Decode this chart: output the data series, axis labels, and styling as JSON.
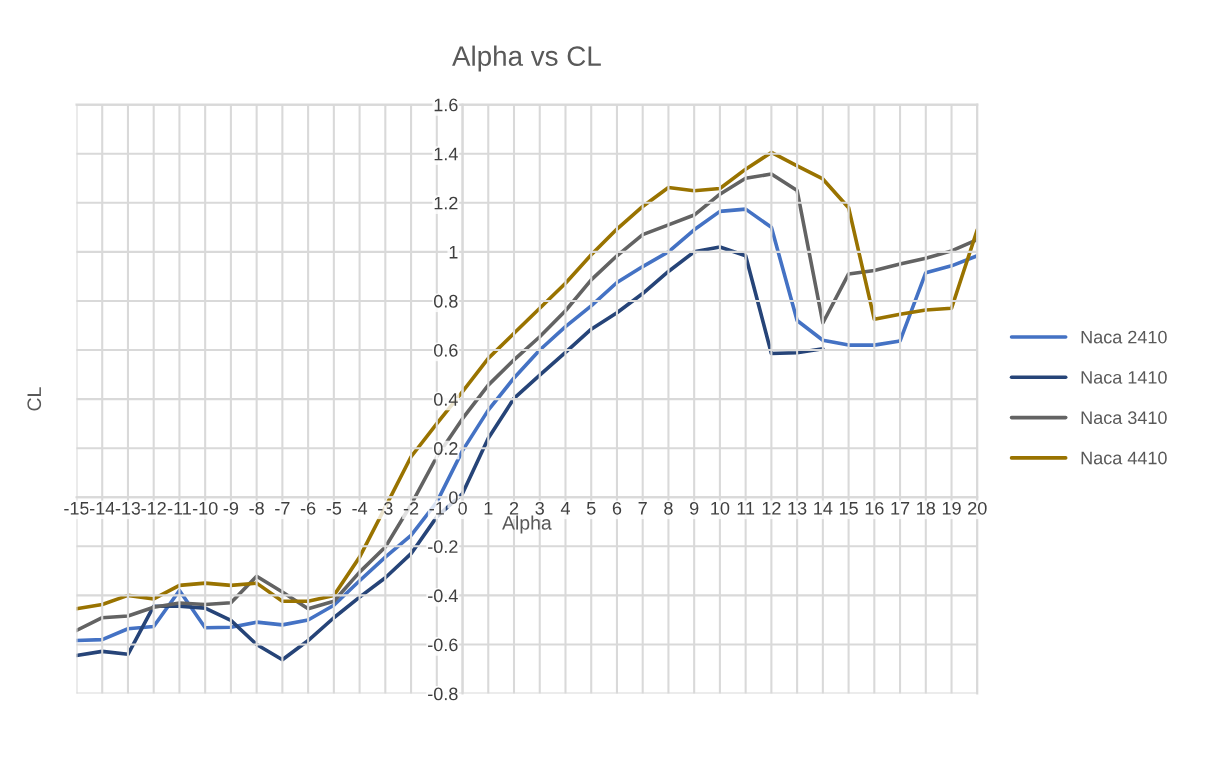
{
  "chart_data": {
    "type": "line",
    "title": "Alpha vs CL",
    "xlabel": "Alpha",
    "ylabel": "CL",
    "categories": [
      "-15",
      "-14",
      "-13",
      "-12",
      "-11",
      "-10",
      "-9",
      "-8",
      "-7",
      "-6",
      "-5",
      "-4",
      "-3",
      "-2",
      "-1",
      "0",
      "1",
      "2",
      "3",
      "4",
      "5",
      "6",
      "7",
      "8",
      "9",
      "10",
      "11",
      "12",
      "13",
      "14",
      "15",
      "16",
      "17",
      "18",
      "19",
      "20"
    ],
    "series": [
      {
        "name": "Naca 2410",
        "color": "#4472c4",
        "values": [
          -0.584,
          -0.58,
          -0.536,
          -0.527,
          -0.38,
          -0.532,
          -0.53,
          -0.509,
          -0.52,
          -0.5,
          -0.44,
          -0.34,
          -0.244,
          -0.155,
          -0.02,
          0.19,
          0.355,
          0.486,
          0.6,
          0.695,
          0.78,
          0.875,
          0.94,
          1.0,
          1.09,
          1.165,
          1.174,
          1.1,
          0.72,
          0.64,
          0.62,
          0.62,
          0.637,
          0.915,
          0.943,
          0.984
        ]
      },
      {
        "name": "Naca 1410",
        "color": "#264478",
        "values": [
          -0.645,
          -0.628,
          -0.64,
          -0.444,
          -0.444,
          -0.452,
          -0.502,
          -0.6,
          -0.662,
          -0.584,
          -0.491,
          -0.407,
          -0.328,
          -0.23,
          -0.08,
          0.015,
          0.24,
          0.403,
          0.498,
          0.59,
          0.685,
          0.752,
          0.83,
          0.92,
          1.0,
          1.02,
          0.984,
          0.586,
          0.589,
          0.605,
          null,
          null,
          null,
          null,
          null,
          null
        ]
      },
      {
        "name": "Naca 3410",
        "color": "#636363",
        "values": [
          -0.543,
          -0.491,
          -0.484,
          -0.448,
          -0.431,
          -0.437,
          -0.43,
          -0.322,
          -0.386,
          -0.454,
          -0.424,
          -0.305,
          -0.203,
          -0.03,
          0.165,
          0.32,
          0.457,
          0.56,
          0.654,
          0.76,
          0.886,
          0.984,
          1.07,
          1.11,
          1.15,
          1.235,
          1.3,
          1.317,
          1.25,
          0.71,
          0.91,
          0.924,
          0.95,
          0.974,
          1.004,
          1.05
        ]
      },
      {
        "name": "Naca 4410",
        "color": "#997300",
        "values": [
          -0.454,
          -0.437,
          -0.4,
          -0.414,
          -0.359,
          -0.35,
          -0.359,
          -0.35,
          -0.424,
          -0.424,
          -0.4,
          -0.244,
          -0.04,
          0.165,
          0.3,
          0.43,
          0.566,
          0.668,
          0.77,
          0.872,
          0.988,
          1.093,
          1.185,
          1.262,
          1.249,
          1.258,
          1.337,
          1.405,
          1.35,
          1.297,
          1.18,
          0.725,
          0.746,
          0.763,
          0.77,
          1.09
        ]
      }
    ],
    "ylim": [
      -0.8,
      1.6
    ],
    "yticks": [
      -0.8,
      -0.6,
      -0.4,
      -0.2,
      0,
      0.2,
      0.4,
      0.6,
      0.8,
      1,
      1.2,
      1.4,
      1.6
    ],
    "grid": true,
    "legend": "right",
    "line_style": "solid",
    "marker": "none"
  }
}
